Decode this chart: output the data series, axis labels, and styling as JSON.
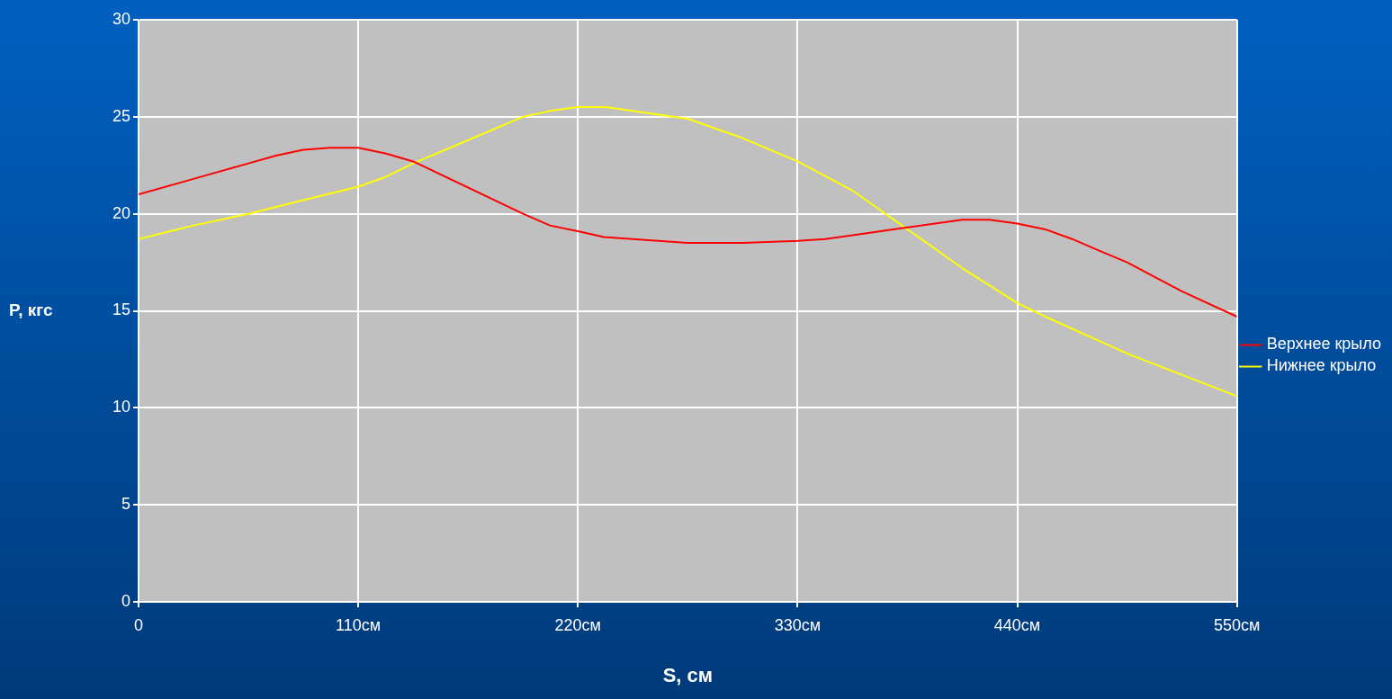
{
  "chart_data": {
    "type": "line",
    "xlabel": "S, см",
    "ylabel": "P, кгс",
    "xlim": [
      0,
      550
    ],
    "xticks": [
      0,
      {
        "value": 110,
        "label": "110см"
      },
      {
        "value": 220,
        "label": "220см"
      },
      {
        "value": 330,
        "label": "330см"
      },
      {
        "value": 440,
        "label": "440см"
      },
      {
        "value": 550,
        "label": "550см"
      }
    ],
    "ylim": [
      0,
      30
    ],
    "yticks": [
      0,
      5,
      10,
      15,
      20,
      25,
      30
    ],
    "grid": true,
    "legend": "right",
    "marker": "none",
    "line_style": "solid",
    "series": [
      {
        "name": "Верхнее крыло",
        "color": "#ff0000",
        "x": [
          0,
          27.5,
          55,
          68.75,
          82.5,
          96,
          110,
          124,
          137.5,
          192.5,
          206,
          220,
          233,
          275,
          302.5,
          330,
          343.75,
          357.5,
          385,
          412.5,
          426,
          440,
          454,
          467.5,
          481,
          495,
          522.5,
          550
        ],
        "values": [
          21.0,
          21.8,
          22.6,
          23.0,
          23.3,
          23.4,
          23.4,
          23.1,
          22.7,
          20.0,
          19.4,
          19.1,
          18.8,
          18.5,
          18.5,
          18.6,
          18.7,
          18.9,
          19.3,
          19.7,
          19.7,
          19.5,
          19.2,
          18.7,
          18.1,
          17.5,
          16.0,
          14.7
        ]
      },
      {
        "name": "Нижнее крыло",
        "color": "#ffff00",
        "x": [
          0,
          27.5,
          55,
          82.5,
          110,
          123.75,
          137.5,
          165,
          192.5,
          206,
          220,
          233.75,
          241,
          275,
          302.5,
          330,
          357.5,
          412.5,
          440,
          454,
          495,
          550
        ],
        "values": [
          18.7,
          19.4,
          20.0,
          20.7,
          21.4,
          21.9,
          22.6,
          23.8,
          25.0,
          25.3,
          25.5,
          25.5,
          25.4,
          24.9,
          23.9,
          22.7,
          21.2,
          17.2,
          15.4,
          14.7,
          12.8,
          10.6
        ]
      }
    ]
  }
}
